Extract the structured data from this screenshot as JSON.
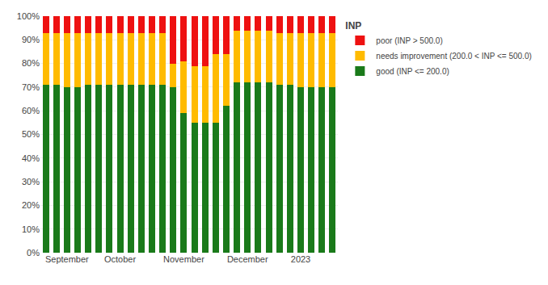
{
  "chart_data": {
    "type": "bar",
    "stacked": true,
    "title": "INP",
    "categories": [
      null,
      null,
      "September",
      null,
      null,
      null,
      null,
      "October",
      null,
      null,
      null,
      null,
      null,
      "November",
      null,
      null,
      null,
      null,
      null,
      "December",
      null,
      null,
      null,
      null,
      "2023",
      null,
      null,
      null
    ],
    "series": [
      {
        "name": "good (INP <= 200.0)",
        "color": "#1a7a1a",
        "values": [
          71,
          71,
          70,
          70,
          71,
          71,
          71,
          71,
          71,
          71,
          71,
          71,
          70,
          59,
          55,
          55,
          55,
          62,
          72,
          72,
          72,
          72,
          71,
          71,
          70,
          70,
          70,
          70
        ]
      },
      {
        "name": "needs improvement (200.0 < INP <= 500.0)",
        "color": "#ffbb00",
        "values": [
          22,
          22,
          23,
          23,
          22,
          22,
          22,
          22,
          22,
          22,
          22,
          22,
          10,
          22,
          24,
          24,
          29,
          22,
          22,
          22,
          22,
          22,
          22,
          22,
          23,
          23,
          23,
          23
        ]
      },
      {
        "name": "poor (INP > 500.0)",
        "color": "#ee1111",
        "values": [
          7,
          7,
          7,
          7,
          7,
          7,
          7,
          7,
          7,
          7,
          7,
          7,
          20,
          19,
          21,
          21,
          16,
          16,
          6,
          6,
          6,
          6,
          7,
          7,
          7,
          7,
          7,
          7
        ]
      }
    ],
    "ylim": [
      0,
      100
    ],
    "yticks": [
      {
        "value": 0,
        "label": "0%"
      },
      {
        "value": 10,
        "label": "10%"
      },
      {
        "value": 20,
        "label": "20%"
      },
      {
        "value": 30,
        "label": "30%"
      },
      {
        "value": 40,
        "label": "40%"
      },
      {
        "value": 50,
        "label": "50%"
      },
      {
        "value": 60,
        "label": "60%"
      },
      {
        "value": 70,
        "label": "70%"
      },
      {
        "value": 80,
        "label": "80%"
      },
      {
        "value": 90,
        "label": "90%"
      },
      {
        "value": 100,
        "label": "100%"
      }
    ],
    "grid": true,
    "legend": "right"
  }
}
